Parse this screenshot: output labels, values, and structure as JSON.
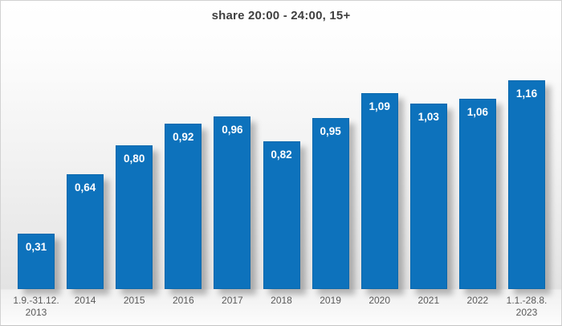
{
  "title": "share 20:00 - 24:00, 15+",
  "chart_data": {
    "type": "bar",
    "title": "share 20:00 - 24:00, 15+",
    "categories": [
      [
        "1.9.-31.12.",
        "2013"
      ],
      [
        "2014"
      ],
      [
        "2015"
      ],
      [
        "2016"
      ],
      [
        "2017"
      ],
      [
        "2018"
      ],
      [
        "2019"
      ],
      [
        "2020"
      ],
      [
        "2021"
      ],
      [
        "2022"
      ],
      [
        "1.1.-28.8.",
        "2023"
      ]
    ],
    "values": [
      0.31,
      0.64,
      0.8,
      0.92,
      0.96,
      0.82,
      0.95,
      1.09,
      1.03,
      1.06,
      1.16
    ],
    "value_labels": [
      "0,31",
      "0,64",
      "0,80",
      "0,92",
      "0,96",
      "0,82",
      "0,95",
      "1,09",
      "1,03",
      "1,06",
      "1,16"
    ],
    "xlabel": "",
    "ylabel": "",
    "ylim": [
      0,
      1.3
    ],
    "grid": false,
    "legend": "none",
    "value_labels_position": "inside-top",
    "bar_color": "#0d72bc",
    "value_label_color": "#ffffff",
    "axis_label_color": "#595959",
    "title_color": "#3f3f3f"
  }
}
